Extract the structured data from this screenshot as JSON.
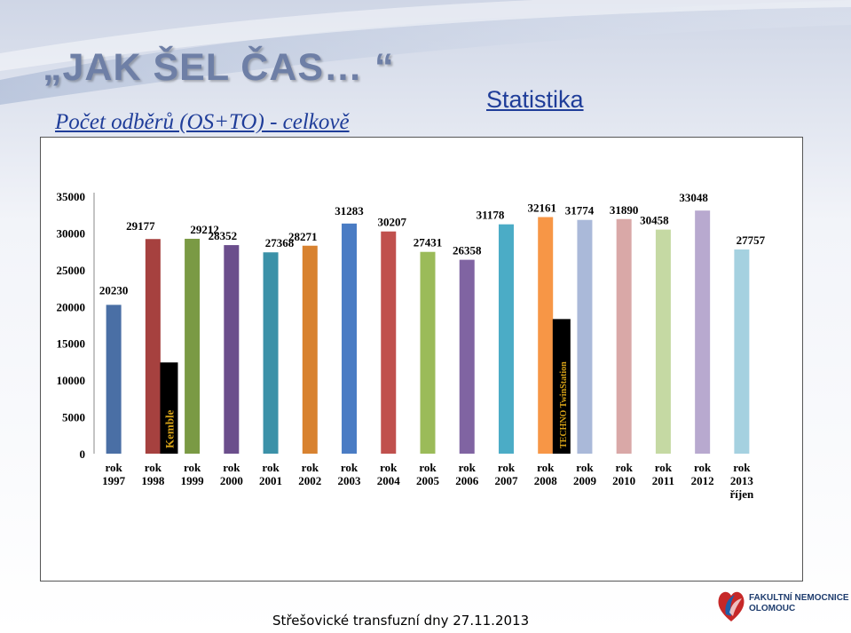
{
  "slide": {
    "title": "„JAK ŠEL ČAS… “",
    "subtitle": "Počet odběrů (OS+TO) - celkově",
    "section": "Statistika",
    "footer": "Střešovické transfuzní dny 27.11.2013",
    "logo_line1": "FAKULTNÍ NEMOCNICE",
    "logo_line2": "OLOMOUC"
  },
  "chart_data": {
    "type": "bar",
    "title": "",
    "xlabel": "",
    "ylabel": "",
    "ylim": [
      0,
      35000
    ],
    "yticks": [
      0,
      5000,
      10000,
      15000,
      20000,
      25000,
      30000,
      35000
    ],
    "grid": false,
    "categories": [
      [
        "rok",
        "1997"
      ],
      [
        "rok",
        "1998"
      ],
      [
        "rok",
        "1999"
      ],
      [
        "rok",
        "2000"
      ],
      [
        "rok",
        "2001"
      ],
      [
        "rok",
        "2002"
      ],
      [
        "rok",
        "2003"
      ],
      [
        "rok",
        "2004"
      ],
      [
        "rok",
        "2005"
      ],
      [
        "rok",
        "2006"
      ],
      [
        "rok",
        "2007"
      ],
      [
        "rok",
        "2008"
      ],
      [
        "rok",
        "2009"
      ],
      [
        "rok",
        "2010"
      ],
      [
        "rok",
        "2011"
      ],
      [
        "rok",
        "2012"
      ],
      [
        "rok",
        "2013",
        "říjen"
      ]
    ],
    "values": [
      20230,
      29177,
      29212,
      28352,
      27368,
      28271,
      31283,
      30207,
      27431,
      26358,
      31178,
      32161,
      31774,
      31890,
      30458,
      33048,
      27757
    ],
    "colors": [
      "#4a6fa5",
      "#a6413f",
      "#7a9a44",
      "#6b4e8c",
      "#3b91a8",
      "#d88230",
      "#4a7cc4",
      "#c0504d",
      "#9bbb59",
      "#8064a2",
      "#4bacc6",
      "#f79646",
      "#aab9d9",
      "#d9a8a7",
      "#c5d9a3",
      "#b8a9cf",
      "#a5d1e0"
    ],
    "annotations": [
      {
        "category_index": 1,
        "label": "Kemble",
        "value": 12400,
        "color": "#000000",
        "text_color": "#d4a017"
      },
      {
        "category_index": 11,
        "label": "TECHNO TwinStation",
        "value": 18300,
        "color": "#000000",
        "text_color": "#d4a017"
      }
    ]
  }
}
